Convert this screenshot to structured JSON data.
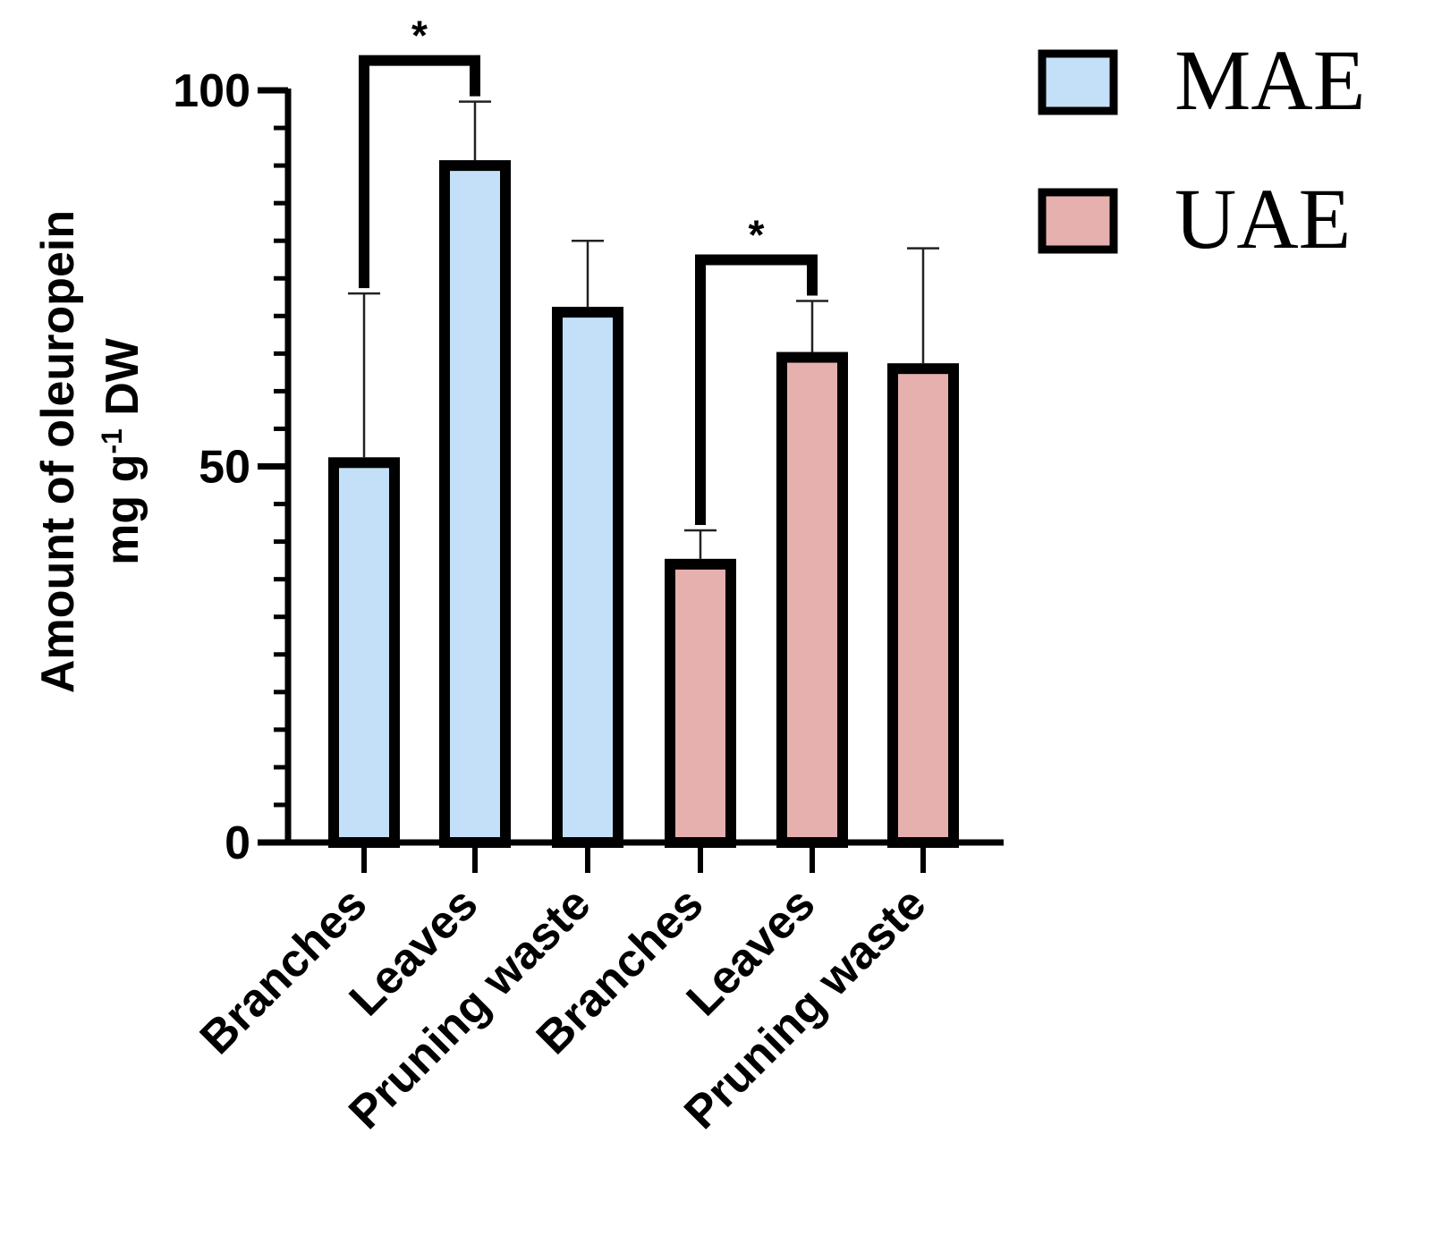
{
  "chart_data": {
    "type": "bar",
    "categories": [
      "Branches",
      "Leaves",
      "Pruning waste",
      "Branches",
      "Leaves",
      "Pruning waste"
    ],
    "values": [
      50.5,
      90,
      70.5,
      37,
      64.5,
      63
    ],
    "errors": [
      22.5,
      8.5,
      9.5,
      4.5,
      7.5,
      16
    ],
    "groups": [
      "MAE",
      "MAE",
      "MAE",
      "UAE",
      "UAE",
      "UAE"
    ],
    "series": [
      {
        "name": "MAE",
        "color": "#c3e0f8"
      },
      {
        "name": "UAE",
        "color": "#e6b0ae"
      }
    ],
    "ylim": [
      0,
      100
    ],
    "yticks": [
      0,
      50,
      100
    ],
    "ylabel_line1": "Amount of oleuropein",
    "ylabel_line2_main": "mg g",
    "ylabel_line2_sup": "-1",
    "ylabel_line2_end": " DW",
    "significance": [
      {
        "from": 0,
        "to": 1,
        "label": "*"
      },
      {
        "from": 3,
        "to": 4,
        "label": "*"
      }
    ],
    "legend_position": "top-right",
    "grid": false
  }
}
